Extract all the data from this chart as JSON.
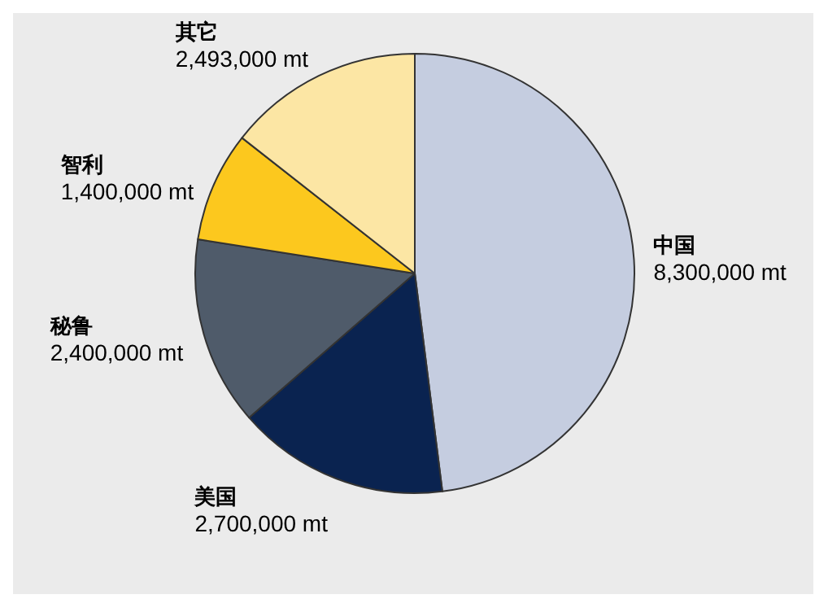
{
  "chart_data": {
    "type": "pie",
    "categories": [
      "中国",
      "美国",
      "秘鲁",
      "智利",
      "其它"
    ],
    "values": [
      8300000,
      2700000,
      2400000,
      1400000,
      2493000
    ],
    "value_labels": [
      "8,300,000 mt",
      "2,700,000 mt",
      "2,400,000 mt",
      "1,400,000 mt",
      "2,493,000 mt"
    ],
    "colors": [
      "#c5cde0",
      "#0a2350",
      "#4f5b6a",
      "#fcc81e",
      "#fce6a4"
    ]
  }
}
